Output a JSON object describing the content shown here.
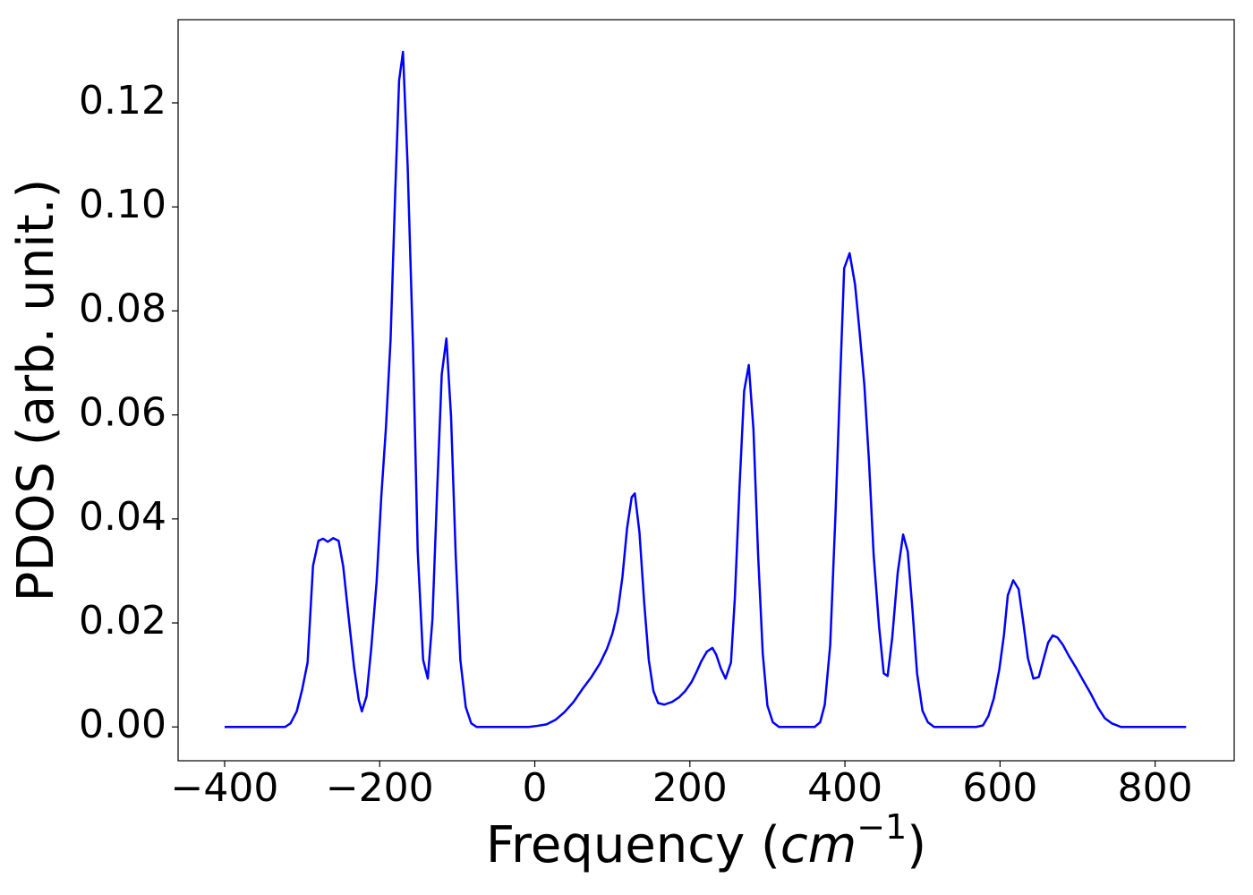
{
  "chart_data": {
    "type": "line",
    "xlabel": [
      "Frequency (",
      "cm",
      "−1",
      ")"
    ],
    "ylabel": "PDOS (arb. unit.)",
    "xlim": [
      -460,
      902
    ],
    "ylim": [
      -0.0065,
      0.136
    ],
    "xticks": [
      {
        "value": -400,
        "label": "−400"
      },
      {
        "value": -200,
        "label": "−200"
      },
      0,
      200,
      400,
      600,
      800
    ],
    "yticks": [
      {
        "value": 0,
        "label": "0.00"
      },
      0.02,
      0.04,
      0.06,
      0.08,
      {
        "value": 0.1,
        "label": "0.10"
      },
      0.12
    ],
    "grid": false,
    "series": [
      {
        "color": "#0000ff",
        "x": [
          -400,
          -322,
          -315,
          -307,
          -300,
          -293,
          -286,
          -279,
          -273,
          -267,
          -260,
          -253,
          -247,
          -240,
          -233,
          -227,
          -223,
          -217,
          -211,
          -204,
          -198,
          -192,
          -186,
          -180,
          -175,
          -170,
          -164,
          -157,
          -151,
          -144,
          -138,
          -132,
          -126,
          -120,
          -114,
          -108,
          -102,
          -96,
          -89,
          -82,
          -75,
          -8,
          3,
          15,
          27,
          38,
          50,
          61,
          73,
          84,
          93,
          100,
          107,
          113,
          119,
          125,
          129,
          135,
          141,
          147,
          153,
          159,
          167,
          177,
          186,
          194,
          202,
          209,
          215,
          222,
          229,
          234,
          240,
          246,
          253,
          258,
          264,
          270,
          276,
          282,
          288,
          294,
          300,
          307,
          315,
          361,
          368,
          374,
          381,
          388,
          394,
          399,
          406,
          413,
          419,
          425,
          431,
          437,
          444,
          450,
          455,
          461,
          468,
          475,
          481,
          487,
          493,
          500,
          507,
          515,
          569,
          578,
          585,
          592,
          599,
          605,
          610,
          617,
          624,
          630,
          636,
          643,
          650,
          655,
          662,
          668,
          674,
          681,
          689,
          698,
          707,
          717,
          726,
          735,
          744,
          756,
          840
        ],
        "values": [
          0,
          0,
          0.0007,
          0.003,
          0.0072,
          0.0124,
          0.031,
          0.0358,
          0.0362,
          0.0356,
          0.0363,
          0.0358,
          0.0308,
          0.021,
          0.0114,
          0.0052,
          0.003,
          0.0059,
          0.015,
          0.0279,
          0.0442,
          0.0575,
          0.0744,
          0.1028,
          0.1243,
          0.1298,
          0.108,
          0.0727,
          0.0339,
          0.0129,
          0.0093,
          0.0207,
          0.0451,
          0.0678,
          0.0747,
          0.0597,
          0.0331,
          0.0129,
          0.0038,
          0.0007,
          0,
          0,
          0.0002,
          0.0005,
          0.0014,
          0.0028,
          0.0048,
          0.0072,
          0.0096,
          0.0122,
          0.015,
          0.0179,
          0.0222,
          0.0288,
          0.0382,
          0.0442,
          0.0449,
          0.0374,
          0.0241,
          0.0129,
          0.0069,
          0.0046,
          0.0043,
          0.0048,
          0.0057,
          0.0069,
          0.0086,
          0.0107,
          0.0127,
          0.0145,
          0.0152,
          0.0139,
          0.0112,
          0.0093,
          0.0124,
          0.0248,
          0.046,
          0.0646,
          0.0696,
          0.0572,
          0.0331,
          0.0141,
          0.0041,
          0.0009,
          0,
          0,
          0.0009,
          0.0043,
          0.0158,
          0.0417,
          0.0675,
          0.0882,
          0.0911,
          0.0851,
          0.0758,
          0.0658,
          0.0511,
          0.0331,
          0.0193,
          0.0103,
          0.0098,
          0.0172,
          0.0296,
          0.037,
          0.0337,
          0.0227,
          0.0103,
          0.0031,
          0.0009,
          0,
          0,
          0.0003,
          0.0021,
          0.0055,
          0.011,
          0.0176,
          0.0253,
          0.0282,
          0.0265,
          0.0201,
          0.0132,
          0.0093,
          0.0096,
          0.0124,
          0.0162,
          0.0176,
          0.0172,
          0.0158,
          0.0136,
          0.0114,
          0.009,
          0.0064,
          0.0038,
          0.0017,
          0.0007,
          0,
          0
        ]
      }
    ]
  }
}
